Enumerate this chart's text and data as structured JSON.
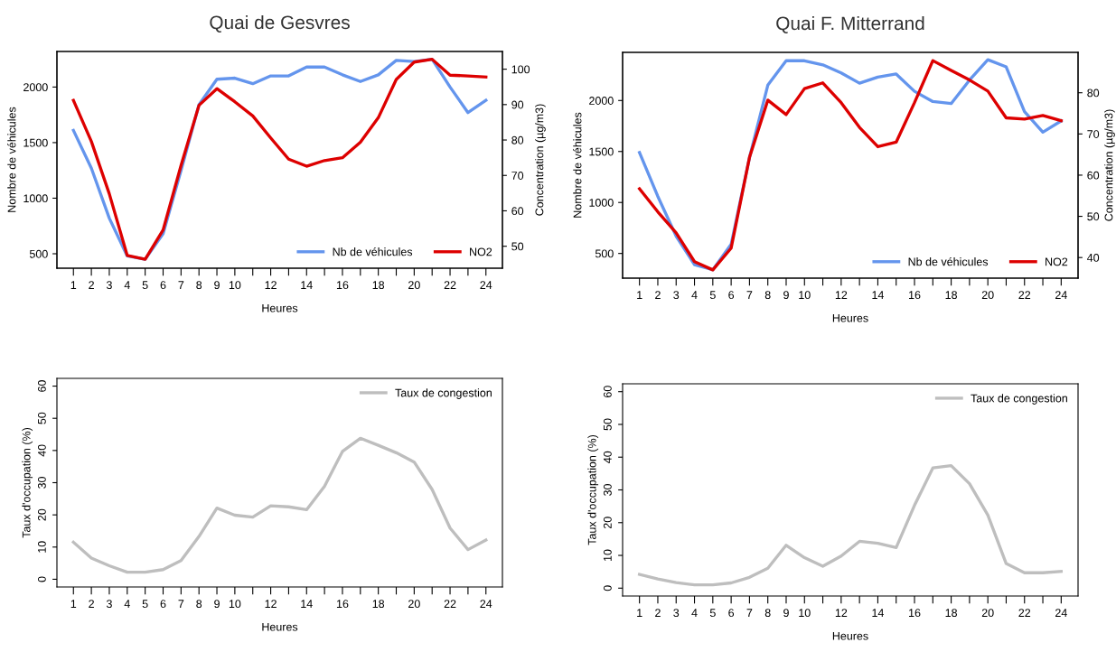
{
  "chart_data": [
    {
      "type": "line",
      "title": "Quai de Gesvres",
      "xlabel": "Heures",
      "ylabel": "Nombre de véhicules",
      "y2label": "Concentration (µg/m3)",
      "x": [
        1,
        2,
        3,
        4,
        5,
        6,
        7,
        8,
        9,
        10,
        11,
        12,
        13,
        14,
        15,
        16,
        17,
        18,
        19,
        20,
        21,
        22,
        23,
        24
      ],
      "series": [
        {
          "name": "Nb de véhicules",
          "color": "#6495ed",
          "values": [
            1610,
            1270,
            820,
            480,
            450,
            680,
            1250,
            1840,
            2070,
            2080,
            2030,
            2100,
            2100,
            2180,
            2180,
            2110,
            2050,
            2110,
            2240,
            2230,
            2250,
            2000,
            1770,
            1880
          ]
        },
        {
          "name": "NO2",
          "color": "#dd0000",
          "axis": "y2",
          "values": [
            91.2,
            79.6,
            64.8,
            47.4,
            46.3,
            54.6,
            72.8,
            89.8,
            94.5,
            90.8,
            86.8,
            80.6,
            74.6,
            72.6,
            74.2,
            75.0,
            79.4,
            86.3,
            97.1,
            102.0,
            102.8,
            98.3,
            98.1,
            97.8
          ]
        }
      ],
      "xlim": [
        0.08,
        24.92
      ],
      "xticks": [
        1,
        2,
        3,
        4,
        5,
        6,
        7,
        8,
        9,
        10,
        {
          "value": 11,
          "label": null
        },
        12,
        {
          "value": 13,
          "label": null
        },
        14,
        {
          "value": 15,
          "label": null
        },
        16,
        {
          "value": 17,
          "label": null
        },
        18,
        {
          "value": 19,
          "label": null
        },
        20,
        {
          "value": 21,
          "label": null
        },
        22,
        {
          "value": 23,
          "label": null
        },
        24
      ],
      "ylim": [
        370,
        2320
      ],
      "yticks": [
        500,
        1000,
        1500,
        2000
      ],
      "y2lim": [
        43.8,
        105
      ],
      "y2ticks": [
        50,
        60,
        70,
        80,
        90,
        100
      ],
      "legend": "bottom right"
    },
    {
      "type": "line",
      "title": "Quai F. Mitterrand",
      "xlabel": "Heures",
      "ylabel": "Nombre de véhicules",
      "y2label": "Concentration (µg/m3)",
      "x": [
        1,
        2,
        3,
        4,
        5,
        6,
        7,
        8,
        9,
        10,
        11,
        12,
        13,
        14,
        15,
        16,
        17,
        18,
        19,
        20,
        21,
        22,
        23,
        24
      ],
      "series": [
        {
          "name": "Nb de véhicules",
          "color": "#6495ed",
          "values": [
            1490,
            1060,
            670,
            390,
            340,
            590,
            1440,
            2150,
            2390,
            2390,
            2350,
            2270,
            2170,
            2230,
            2260,
            2090,
            1990,
            1970,
            2200,
            2400,
            2330,
            1890,
            1690,
            1800
          ]
        },
        {
          "name": "NO2",
          "color": "#dd0000",
          "axis": "y2",
          "values": [
            56.7,
            51.1,
            46.0,
            39.0,
            37.0,
            42.3,
            64.3,
            78.2,
            74.7,
            81.0,
            82.4,
            77.6,
            71.6,
            66.9,
            68.0,
            77.6,
            87.8,
            85.4,
            83.1,
            80.4,
            73.9,
            73.6,
            74.5,
            73.2
          ]
        }
      ],
      "xlim": [
        0.08,
        24.92
      ],
      "xticks": [
        1,
        2,
        3,
        4,
        5,
        6,
        7,
        8,
        9,
        10,
        {
          "value": 11,
          "label": null
        },
        12,
        {
          "value": 13,
          "label": null
        },
        14,
        {
          "value": 15,
          "label": null
        },
        16,
        {
          "value": 17,
          "label": null
        },
        18,
        {
          "value": 19,
          "label": null
        },
        20,
        {
          "value": 21,
          "label": null
        },
        22,
        {
          "value": 23,
          "label": null
        },
        24
      ],
      "ylim": [
        258,
        2472
      ],
      "yticks": [
        500,
        1000,
        1500,
        2000
      ],
      "y2lim": [
        35,
        89.8
      ],
      "y2ticks": [
        40,
        50,
        60,
        70,
        80
      ],
      "legend": "bottom right"
    },
    {
      "type": "line",
      "xlabel": "Heures",
      "ylabel": "Taux d'occupation (%)",
      "x": [
        1,
        2,
        3,
        4,
        5,
        6,
        7,
        8,
        9,
        10,
        11,
        12,
        13,
        14,
        15,
        16,
        17,
        18,
        19,
        20,
        21,
        22,
        23,
        24
      ],
      "series": [
        {
          "name": "Taux de congestion",
          "color": "#bebebe",
          "values": [
            11.5,
            6.6,
            4.2,
            2.2,
            2.2,
            3.0,
            5.8,
            13.3,
            22.1,
            19.9,
            19.3,
            22.8,
            22.5,
            21.6,
            28.9,
            39.7,
            43.8,
            41.6,
            39.3,
            36.4,
            27.9,
            15.9,
            9.2,
            12.2
          ]
        }
      ],
      "xlim": [
        0.08,
        24.92
      ],
      "xticks": [
        1,
        2,
        3,
        4,
        5,
        6,
        7,
        8,
        9,
        10,
        {
          "value": 11,
          "label": null
        },
        12,
        {
          "value": 13,
          "label": null
        },
        14,
        {
          "value": 15,
          "label": null
        },
        16,
        {
          "value": 17,
          "label": null
        },
        18,
        {
          "value": 19,
          "label": null
        },
        20,
        {
          "value": 21,
          "label": null
        },
        22,
        {
          "value": 23,
          "label": null
        },
        24
      ],
      "ylim": [
        -2.4,
        62.4
      ],
      "yticks": [
        0,
        10,
        20,
        30,
        40,
        50,
        60
      ],
      "legend": "top right"
    },
    {
      "type": "line",
      "xlabel": "Heures",
      "ylabel": "Taux d'occupation (%)",
      "x": [
        1,
        2,
        3,
        4,
        5,
        6,
        7,
        8,
        9,
        10,
        11,
        12,
        13,
        14,
        15,
        16,
        17,
        18,
        19,
        20,
        21,
        22,
        23,
        24
      ],
      "series": [
        {
          "name": "Taux de congestion",
          "color": "#bebebe",
          "values": [
            4.2,
            2.8,
            1.7,
            1.0,
            1.0,
            1.6,
            3.3,
            6.1,
            13.1,
            9.3,
            6.7,
            9.8,
            14.3,
            13.7,
            12.4,
            25.3,
            36.7,
            37.4,
            31.9,
            22.3,
            7.5,
            4.7,
            4.7,
            5.1
          ]
        }
      ],
      "xlim": [
        0.08,
        24.92
      ],
      "xticks": [
        1,
        2,
        3,
        4,
        5,
        6,
        7,
        8,
        9,
        10,
        {
          "value": 11,
          "label": null
        },
        12,
        {
          "value": 13,
          "label": null
        },
        14,
        {
          "value": 15,
          "label": null
        },
        16,
        {
          "value": 17,
          "label": null
        },
        18,
        {
          "value": 19,
          "label": null
        },
        20,
        {
          "value": 21,
          "label": null
        },
        22,
        {
          "value": 23,
          "label": null
        },
        24
      ],
      "ylim": [
        -2.4,
        62.4
      ],
      "yticks": [
        0,
        10,
        20,
        30,
        40,
        50,
        60
      ],
      "legend": "top right"
    }
  ]
}
